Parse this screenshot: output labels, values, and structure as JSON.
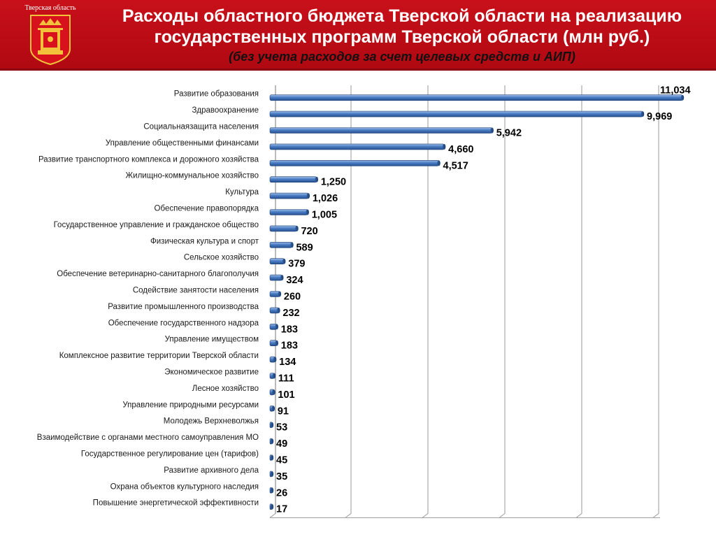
{
  "header": {
    "emblem_caption": "Тверская область",
    "title_line1": "Расходы областного бюджета Тверской области на реализацию",
    "title_line2": "государственных программ Тверской области (млн руб.)",
    "subtitle": "(без учета расходов за счет целевых средств и АИП)"
  },
  "colors": {
    "header_red": "#c8101a",
    "bar_blue": "#4a7cc4",
    "bar_dark": "#254f8f",
    "grid": "#9a9a9a"
  },
  "chart_data": {
    "type": "bar",
    "orientation": "horizontal",
    "categories": [
      "Развитие образования",
      "Здравоохранение",
      "Социальнаязащита населения",
      "Управление общественными финансами",
      "Развитие транспортного комплекса и дорожного хозяйства",
      "Жилищно-коммунальное хозяйство",
      "Культура",
      "Обеспечение правопорядка",
      "Государственное управление и гражданское общество",
      "Физическая культура и спорт",
      "Сельское хозяйство",
      "Обеспечение ветеринарно-санитарного благополучия",
      "Содействие занятости населения",
      "Развитие промышленного производства",
      "Обеспечение государственного надзора",
      "Управление имуществом",
      "Комплексное развитие территории Тверской области",
      "Экономическое развитие",
      "Лесное хозяйство",
      "Управление природными ресурсами",
      "Молодежь Верхневолжья",
      "Взаимодействие с органами местного самоуправления МО",
      "Государственное регулирование цен (тарифов)",
      "Развитие архивного дела",
      "Охрана объектов культурного наследия",
      "Повышение энергетической эффективности"
    ],
    "values": [
      11034,
      9969,
      5942,
      4660,
      4517,
      1250,
      1026,
      1005,
      720,
      589,
      379,
      324,
      260,
      232,
      183,
      183,
      134,
      111,
      101,
      91,
      53,
      49,
      45,
      35,
      26,
      17
    ],
    "value_labels": [
      "11,034",
      "9,969",
      "5,942",
      "4,660",
      "4,517",
      "1,250",
      "1,026",
      "1,005",
      "720",
      "589",
      "379",
      "324",
      "260",
      "232",
      "183",
      "183",
      "134",
      "111",
      "101",
      "91",
      "53",
      "49",
      "45",
      "35",
      "26",
      "17"
    ],
    "xlim": [
      0,
      11034
    ],
    "grid": true,
    "legend": "none"
  }
}
